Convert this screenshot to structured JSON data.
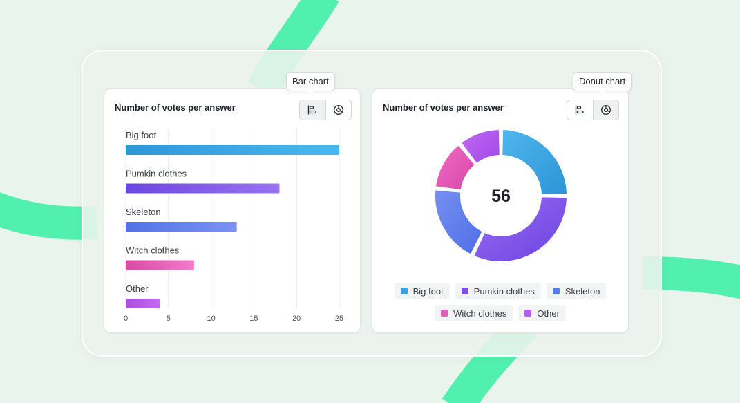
{
  "left_card": {
    "title": "Number of votes per answer",
    "tooltip": "Bar chart",
    "toggle_bar_icon": "bar-chart-icon",
    "toggle_donut_icon": "donut-chart-icon"
  },
  "right_card": {
    "title": "Number of votes per answer",
    "tooltip": "Donut chart",
    "total": "56",
    "toggle_bar_icon": "bar-chart-icon",
    "toggle_donut_icon": "donut-chart-icon"
  },
  "chart_data": [
    {
      "type": "bar",
      "orientation": "horizontal",
      "title": "Number of votes per answer",
      "categories": [
        "Big foot",
        "Pumkin clothes",
        "Skeleton",
        "Witch clothes",
        "Other"
      ],
      "values": [
        25,
        18,
        13,
        8,
        4
      ],
      "xlim": [
        0,
        25
      ],
      "xticks": [
        0,
        5,
        10,
        15,
        20,
        25
      ],
      "grid": true,
      "colors": [
        [
          "#2f96d6",
          "#4bb7ef"
        ],
        [
          "#6b46e0",
          "#9a74f2"
        ],
        [
          "#5273e6",
          "#7b92f3"
        ],
        [
          "#db4aa3",
          "#f17ccc"
        ],
        [
          "#a94ee0",
          "#c46cf0"
        ]
      ]
    },
    {
      "type": "pie",
      "variant": "donut",
      "title": "Number of votes per answer",
      "categories": [
        "Big foot",
        "Pumkin clothes",
        "Skeleton",
        "Witch clothes",
        "Other"
      ],
      "values": [
        14,
        18,
        11,
        7,
        6
      ],
      "center_label": "56",
      "legend_position": "bottom",
      "colors": [
        [
          "#2d94d6",
          "#4fb6ee"
        ],
        [
          "#6a42e0",
          "#9b6ef3"
        ],
        [
          "#4f6ee6",
          "#7590f0"
        ],
        [
          "#d944a8",
          "#ee6fc3"
        ],
        [
          "#9f46e8",
          "#c26bf2"
        ]
      ]
    }
  ],
  "legend": [
    {
      "label": "Big foot",
      "color": "#3aa0e2"
    },
    {
      "label": "Pumkin clothes",
      "color": "#7b4fe8"
    },
    {
      "label": "Skeleton",
      "color": "#5a7bea"
    },
    {
      "label": "Witch clothes",
      "color": "#e45bb7"
    },
    {
      "label": "Other",
      "color": "#b35ef0"
    }
  ],
  "background_accent": "#4ef2ae"
}
